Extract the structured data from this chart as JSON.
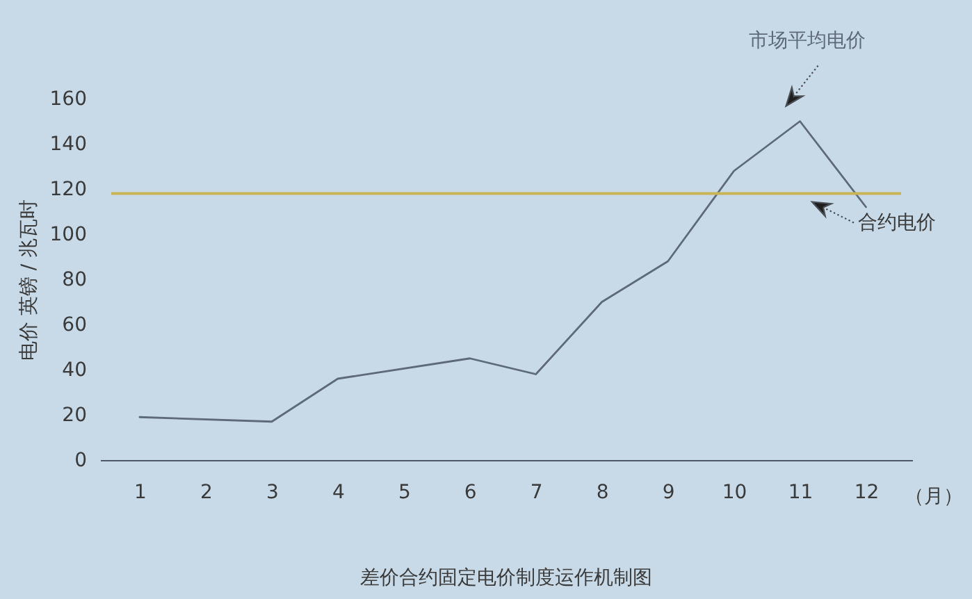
{
  "chart_data": {
    "type": "line",
    "title": "差价合约固定电价制度运作机制图",
    "xlabel": "（月）",
    "ylabel": "电价 英镑 / 兆瓦时",
    "x": [
      1,
      3,
      4,
      6,
      7,
      8,
      9,
      10,
      11,
      12
    ],
    "series": [
      {
        "name": "市场平均电价",
        "color": "#5e6a79",
        "values": [
          19,
          17,
          36,
          45,
          38,
          70,
          88,
          128,
          150,
          112
        ]
      }
    ],
    "xlim": [
      0.4,
      12.7
    ],
    "xticks": [
      1,
      2,
      3,
      4,
      5,
      6,
      7,
      8,
      9,
      10,
      11,
      12
    ],
    "ylim": [
      0,
      160
    ],
    "yticks": [
      0,
      20,
      40,
      60,
      80,
      100,
      120,
      140,
      160
    ],
    "ref_lines": [
      {
        "axis": "y",
        "value": 118,
        "label": "合约电价",
        "color": "#c9b357"
      }
    ]
  }
}
